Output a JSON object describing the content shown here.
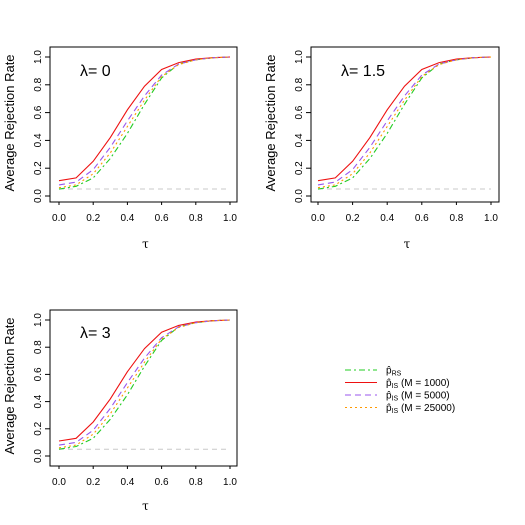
{
  "chart_data": [
    {
      "type": "line",
      "panel_label": "λ= 0",
      "xlabel": "τ",
      "ylabel": "Average Rejection Rate",
      "xlim": [
        0,
        1
      ],
      "ylim": [
        0,
        1
      ],
      "x_ticks": [
        "0.0",
        "0.2",
        "0.4",
        "0.6",
        "0.8",
        "1.0"
      ],
      "y_ticks": [
        "0.0",
        "0.2",
        "0.4",
        "0.6",
        "0.8",
        "1.0"
      ],
      "reference_line_y": 0.05,
      "x": [
        0,
        0.1,
        0.2,
        0.3,
        0.4,
        0.5,
        0.6,
        0.7,
        0.8,
        0.9,
        1.0
      ],
      "series": [
        {
          "values": [
            0.05,
            0.07,
            0.13,
            0.27,
            0.45,
            0.66,
            0.85,
            0.95,
            0.98,
            0.995,
            1.0
          ]
        },
        {
          "values": [
            0.11,
            0.13,
            0.25,
            0.42,
            0.62,
            0.79,
            0.91,
            0.96,
            0.985,
            0.995,
            1.0
          ]
        },
        {
          "values": [
            0.08,
            0.1,
            0.19,
            0.35,
            0.54,
            0.72,
            0.87,
            0.95,
            0.98,
            0.995,
            1.0
          ]
        },
        {
          "values": [
            0.06,
            0.08,
            0.16,
            0.31,
            0.5,
            0.69,
            0.86,
            0.945,
            0.98,
            0.995,
            1.0
          ]
        }
      ]
    },
    {
      "type": "line",
      "panel_label": "λ= 1.5",
      "xlabel": "τ",
      "ylabel": "Average Rejection Rate",
      "xlim": [
        0,
        1
      ],
      "ylim": [
        0,
        1
      ],
      "x_ticks": [
        "0.0",
        "0.2",
        "0.4",
        "0.6",
        "0.8",
        "1.0"
      ],
      "y_ticks": [
        "0.0",
        "0.2",
        "0.4",
        "0.6",
        "0.8",
        "1.0"
      ],
      "reference_line_y": 0.05,
      "x": [
        0,
        0.1,
        0.2,
        0.3,
        0.4,
        0.5,
        0.6,
        0.7,
        0.8,
        0.9,
        1.0
      ],
      "series": [
        {
          "values": [
            0.05,
            0.07,
            0.13,
            0.27,
            0.45,
            0.66,
            0.85,
            0.95,
            0.98,
            0.995,
            1.0
          ]
        },
        {
          "values": [
            0.11,
            0.13,
            0.25,
            0.42,
            0.62,
            0.79,
            0.91,
            0.96,
            0.985,
            0.995,
            1.0
          ]
        },
        {
          "values": [
            0.08,
            0.1,
            0.19,
            0.35,
            0.54,
            0.72,
            0.87,
            0.95,
            0.98,
            0.995,
            1.0
          ]
        },
        {
          "values": [
            0.06,
            0.08,
            0.16,
            0.31,
            0.5,
            0.69,
            0.86,
            0.945,
            0.98,
            0.995,
            1.0
          ]
        }
      ]
    },
    {
      "type": "line",
      "panel_label": "λ= 3",
      "xlabel": "τ",
      "ylabel": "Average Rejection Rate",
      "xlim": [
        0,
        1
      ],
      "ylim": [
        0,
        1
      ],
      "x_ticks": [
        "0.0",
        "0.2",
        "0.4",
        "0.6",
        "0.8",
        "1.0"
      ],
      "y_ticks": [
        "0.0",
        "0.2",
        "0.4",
        "0.6",
        "0.8",
        "1.0"
      ],
      "reference_line_y": 0.05,
      "x": [
        0,
        0.1,
        0.2,
        0.3,
        0.4,
        0.5,
        0.6,
        0.7,
        0.8,
        0.9,
        1.0
      ],
      "series": [
        {
          "values": [
            0.05,
            0.07,
            0.13,
            0.27,
            0.45,
            0.66,
            0.85,
            0.95,
            0.98,
            0.995,
            1.0
          ]
        },
        {
          "values": [
            0.11,
            0.13,
            0.25,
            0.42,
            0.62,
            0.79,
            0.91,
            0.96,
            0.985,
            0.995,
            1.0
          ]
        },
        {
          "values": [
            0.08,
            0.1,
            0.19,
            0.35,
            0.54,
            0.72,
            0.87,
            0.95,
            0.98,
            0.995,
            1.0
          ]
        },
        {
          "values": [
            0.06,
            0.08,
            0.16,
            0.31,
            0.5,
            0.69,
            0.86,
            0.945,
            0.98,
            0.995,
            1.0
          ]
        }
      ]
    }
  ],
  "series_styles": [
    {
      "color": "#22cc22",
      "dash": "dotdash"
    },
    {
      "color": "#ee1111",
      "dash": "solid"
    },
    {
      "color": "#9955ee",
      "dash": "dashed"
    },
    {
      "color": "#ff9900",
      "dash": "dotted"
    }
  ],
  "reference_line_color": "#c8c8c8",
  "legend": {
    "position": "right, beside bottom-left panel",
    "entries": [
      {
        "main": "p̂",
        "sub": "RS",
        "suffix": ""
      },
      {
        "main": "p̂",
        "sub": "IS",
        "suffix": " (M = 1000)"
      },
      {
        "main": "p̂",
        "sub": "IS",
        "suffix": " (M = 5000)"
      },
      {
        "main": "p̂",
        "sub": "IS",
        "suffix": " (M = 25000)"
      }
    ]
  }
}
